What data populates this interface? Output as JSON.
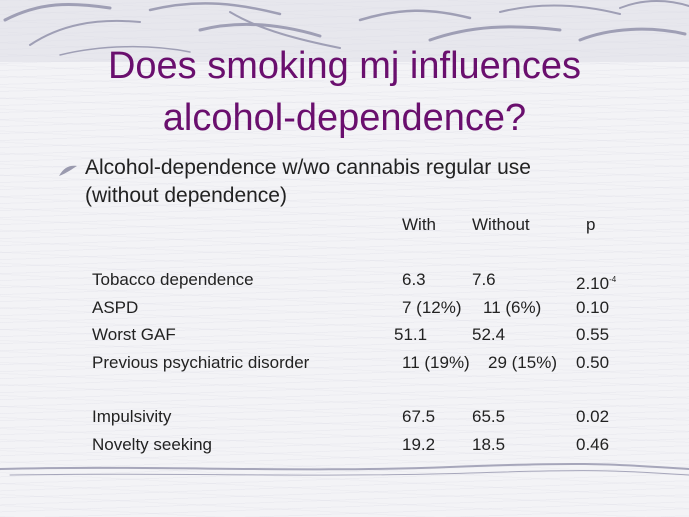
{
  "title_line1": "Does smoking mj influences",
  "title_line2": "alcohol-dependence?",
  "bullet": {
    "icon": "leaf-bullet-icon",
    "line1": "Alcohol-dependence w/wo cannabis regular use",
    "line2": "(without dependence)"
  },
  "table": {
    "headers": {
      "with": "With",
      "without": "Without",
      "p": "p"
    },
    "rows": [
      {
        "label": "Tobacco dependence",
        "with": "6.3",
        "without": "7.6",
        "p": "2.10",
        "p_exp": "-4"
      },
      {
        "label": "ASPD",
        "with": "7 (12%)",
        "without": "11 (6%)",
        "p": "0.10"
      },
      {
        "label": "Worst GAF",
        "with": "51.1",
        "without": "52.4",
        "p": "0.55"
      },
      {
        "label": "Previous psychiatric disorder",
        "with": "11 (19%)",
        "without": "29 (15%)",
        "p": "0.50"
      },
      {
        "label": "Impulsivity",
        "with": "67.5",
        "without": "65.5",
        "p": "0.02"
      },
      {
        "label": "Novelty seeking",
        "with": "19.2",
        "without": "18.5",
        "p": "0.46"
      }
    ]
  },
  "colors": {
    "title": "#6a0f6e",
    "text": "#222222",
    "swash": "#8e8ea8"
  }
}
